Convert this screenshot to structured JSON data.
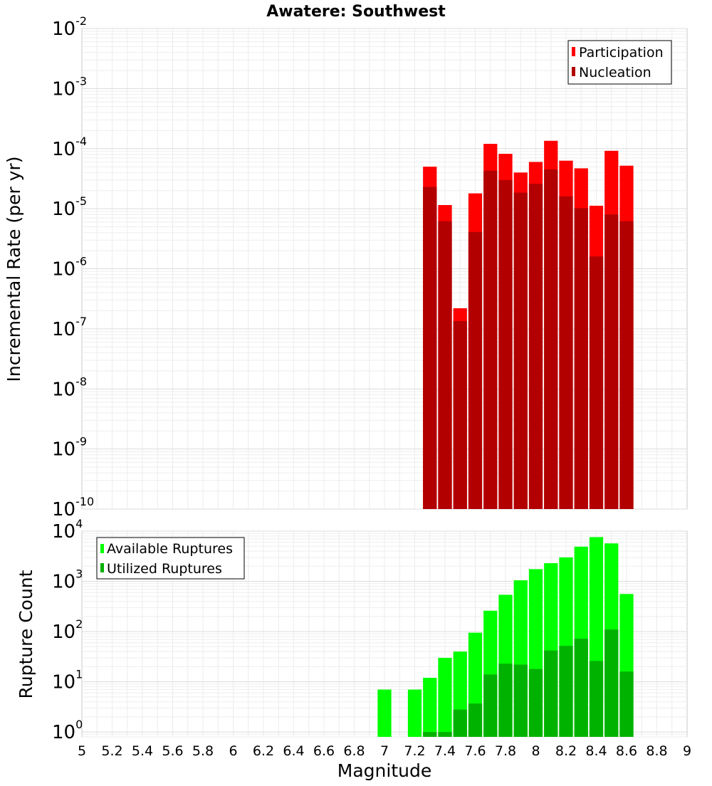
{
  "chart_data": [
    {
      "type": "bar",
      "title": "Awatere: Southwest",
      "xlabel": "Magnitude",
      "ylabel": "Incremental Rate (per yr)",
      "yscale": "log",
      "ylim": [
        1e-10,
        0.01
      ],
      "xlim": [
        5,
        9
      ],
      "grid": true,
      "legend_position": "top-right",
      "x": [
        7.3,
        7.4,
        7.5,
        7.6,
        7.7,
        7.8,
        7.9,
        8.0,
        8.1,
        8.2,
        8.3,
        8.4,
        8.5,
        8.6
      ],
      "series": [
        {
          "name": "Participation",
          "color": "#ff0000",
          "values": [
            5e-05,
            1.15e-05,
            2.2e-07,
            1.8e-05,
            0.00012,
            8.2e-05,
            4e-05,
            6e-05,
            0.000135,
            6.3e-05,
            4.7e-05,
            1.12e-05,
            9.2e-05,
            5.2e-05
          ]
        },
        {
          "name": "Nucleation",
          "color": "#b20000",
          "values": [
            2.3e-05,
            6.2e-06,
            1.35e-07,
            4.1e-06,
            4.3e-05,
            3e-05,
            1.85e-05,
            2.6e-05,
            4.5e-05,
            1.6e-05,
            1.02e-05,
            1.6e-06,
            8e-06,
            6.2e-06
          ]
        }
      ]
    },
    {
      "type": "bar",
      "xlabel": "Magnitude",
      "ylabel": "Rupture Count",
      "yscale": "log",
      "ylim": [
        0.8,
        10000
      ],
      "xlim": [
        5,
        9
      ],
      "grid": true,
      "legend_position": "top-left",
      "x": [
        7.0,
        7.2,
        7.3,
        7.4,
        7.5,
        7.6,
        7.7,
        7.8,
        7.9,
        8.0,
        8.1,
        8.2,
        8.3,
        8.4,
        8.5,
        8.6
      ],
      "series": [
        {
          "name": "Available Ruptures",
          "color": "#00ff00",
          "values": [
            7,
            7,
            12,
            30,
            40,
            95,
            260,
            540,
            1050,
            1750,
            2300,
            3000,
            4900,
            7600,
            5700,
            560
          ]
        },
        {
          "name": "Utilized Ruptures",
          "color": "#00b200",
          "values": [
            0,
            0,
            1,
            1,
            2.8,
            3.7,
            14,
            23,
            22,
            18,
            42,
            52,
            72,
            26,
            110,
            16
          ]
        }
      ]
    }
  ],
  "x_ticks": [
    "5",
    "5.2",
    "5.4",
    "5.6",
    "5.8",
    "6",
    "6.2",
    "6.4",
    "6.6",
    "6.8",
    "7",
    "7.2",
    "7.4",
    "7.6",
    "7.8",
    "8",
    "8.2",
    "8.4",
    "8.6",
    "8.8",
    "9"
  ],
  "top_y_ticks": [
    {
      "base": "10",
      "exp": "-2",
      "v": 0.01
    },
    {
      "base": "10",
      "exp": "-3",
      "v": 0.001
    },
    {
      "base": "10",
      "exp": "-4",
      "v": 0.0001
    },
    {
      "base": "10",
      "exp": "-5",
      "v": 1e-05
    },
    {
      "base": "10",
      "exp": "-6",
      "v": 1e-06
    },
    {
      "base": "10",
      "exp": "-7",
      "v": 1e-07
    },
    {
      "base": "10",
      "exp": "-8",
      "v": 1e-08
    },
    {
      "base": "10",
      "exp": "-9",
      "v": 1e-09
    },
    {
      "base": "10",
      "exp": "-10",
      "v": 1e-10
    }
  ],
  "bottom_y_ticks": [
    {
      "base": "10",
      "exp": "4",
      "v": 10000.0
    },
    {
      "base": "10",
      "exp": "3",
      "v": 1000.0
    },
    {
      "base": "10",
      "exp": "2",
      "v": 100.0
    },
    {
      "base": "10",
      "exp": "1",
      "v": 10.0
    },
    {
      "base": "10",
      "exp": "0",
      "v": 1
    }
  ]
}
